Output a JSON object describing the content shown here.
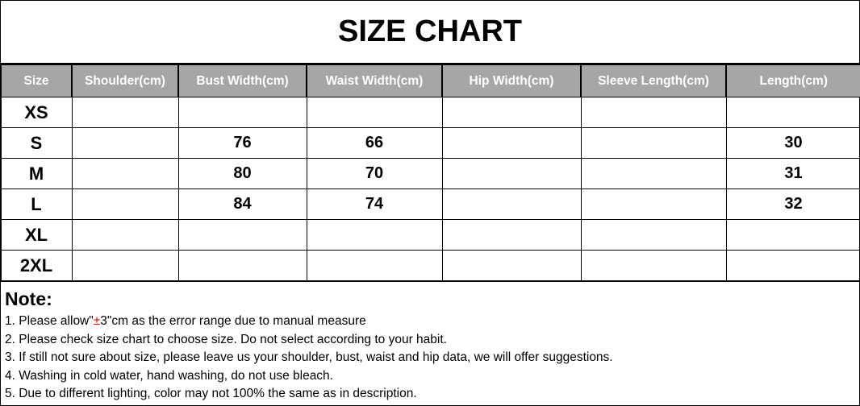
{
  "title": "SIZE CHART",
  "table": {
    "headers": [
      "Size",
      "Shoulder(cm)",
      "Bust Width(cm)",
      "Waist Width(cm)",
      "Hip Width(cm)",
      "Sleeve Length(cm)",
      "Length(cm)"
    ],
    "rows": [
      [
        "XS",
        "",
        "",
        "",
        "",
        "",
        ""
      ],
      [
        "S",
        "",
        "76",
        "66",
        "",
        "",
        "30"
      ],
      [
        "M",
        "",
        "80",
        "70",
        "",
        "",
        "31"
      ],
      [
        "L",
        "",
        "84",
        "74",
        "",
        "",
        "32"
      ],
      [
        "XL",
        "",
        "",
        "",
        "",
        "",
        ""
      ],
      [
        "2XL",
        "",
        "",
        "",
        "",
        "",
        ""
      ]
    ]
  },
  "notes": {
    "heading": "Note:",
    "line1": {
      "before": "1. Please allow\"",
      "highlight": "±",
      "after": "3\"cm as the error range due to manual measure"
    },
    "items": [
      "2. Please check size chart to choose size. Do not select according to your habit.",
      "3. If still not sure about size, please leave us your shoulder, bust, waist and hip data, we will offer suggestions.",
      "4. Washing in cold water, hand washing, do not use bleach.",
      "5. Due to different lighting, color may not 100% the same as in description."
    ],
    "highlight_color": "#e00000"
  },
  "colors": {
    "header_bg": "#a6a6a6",
    "header_text": "#ffffff"
  }
}
